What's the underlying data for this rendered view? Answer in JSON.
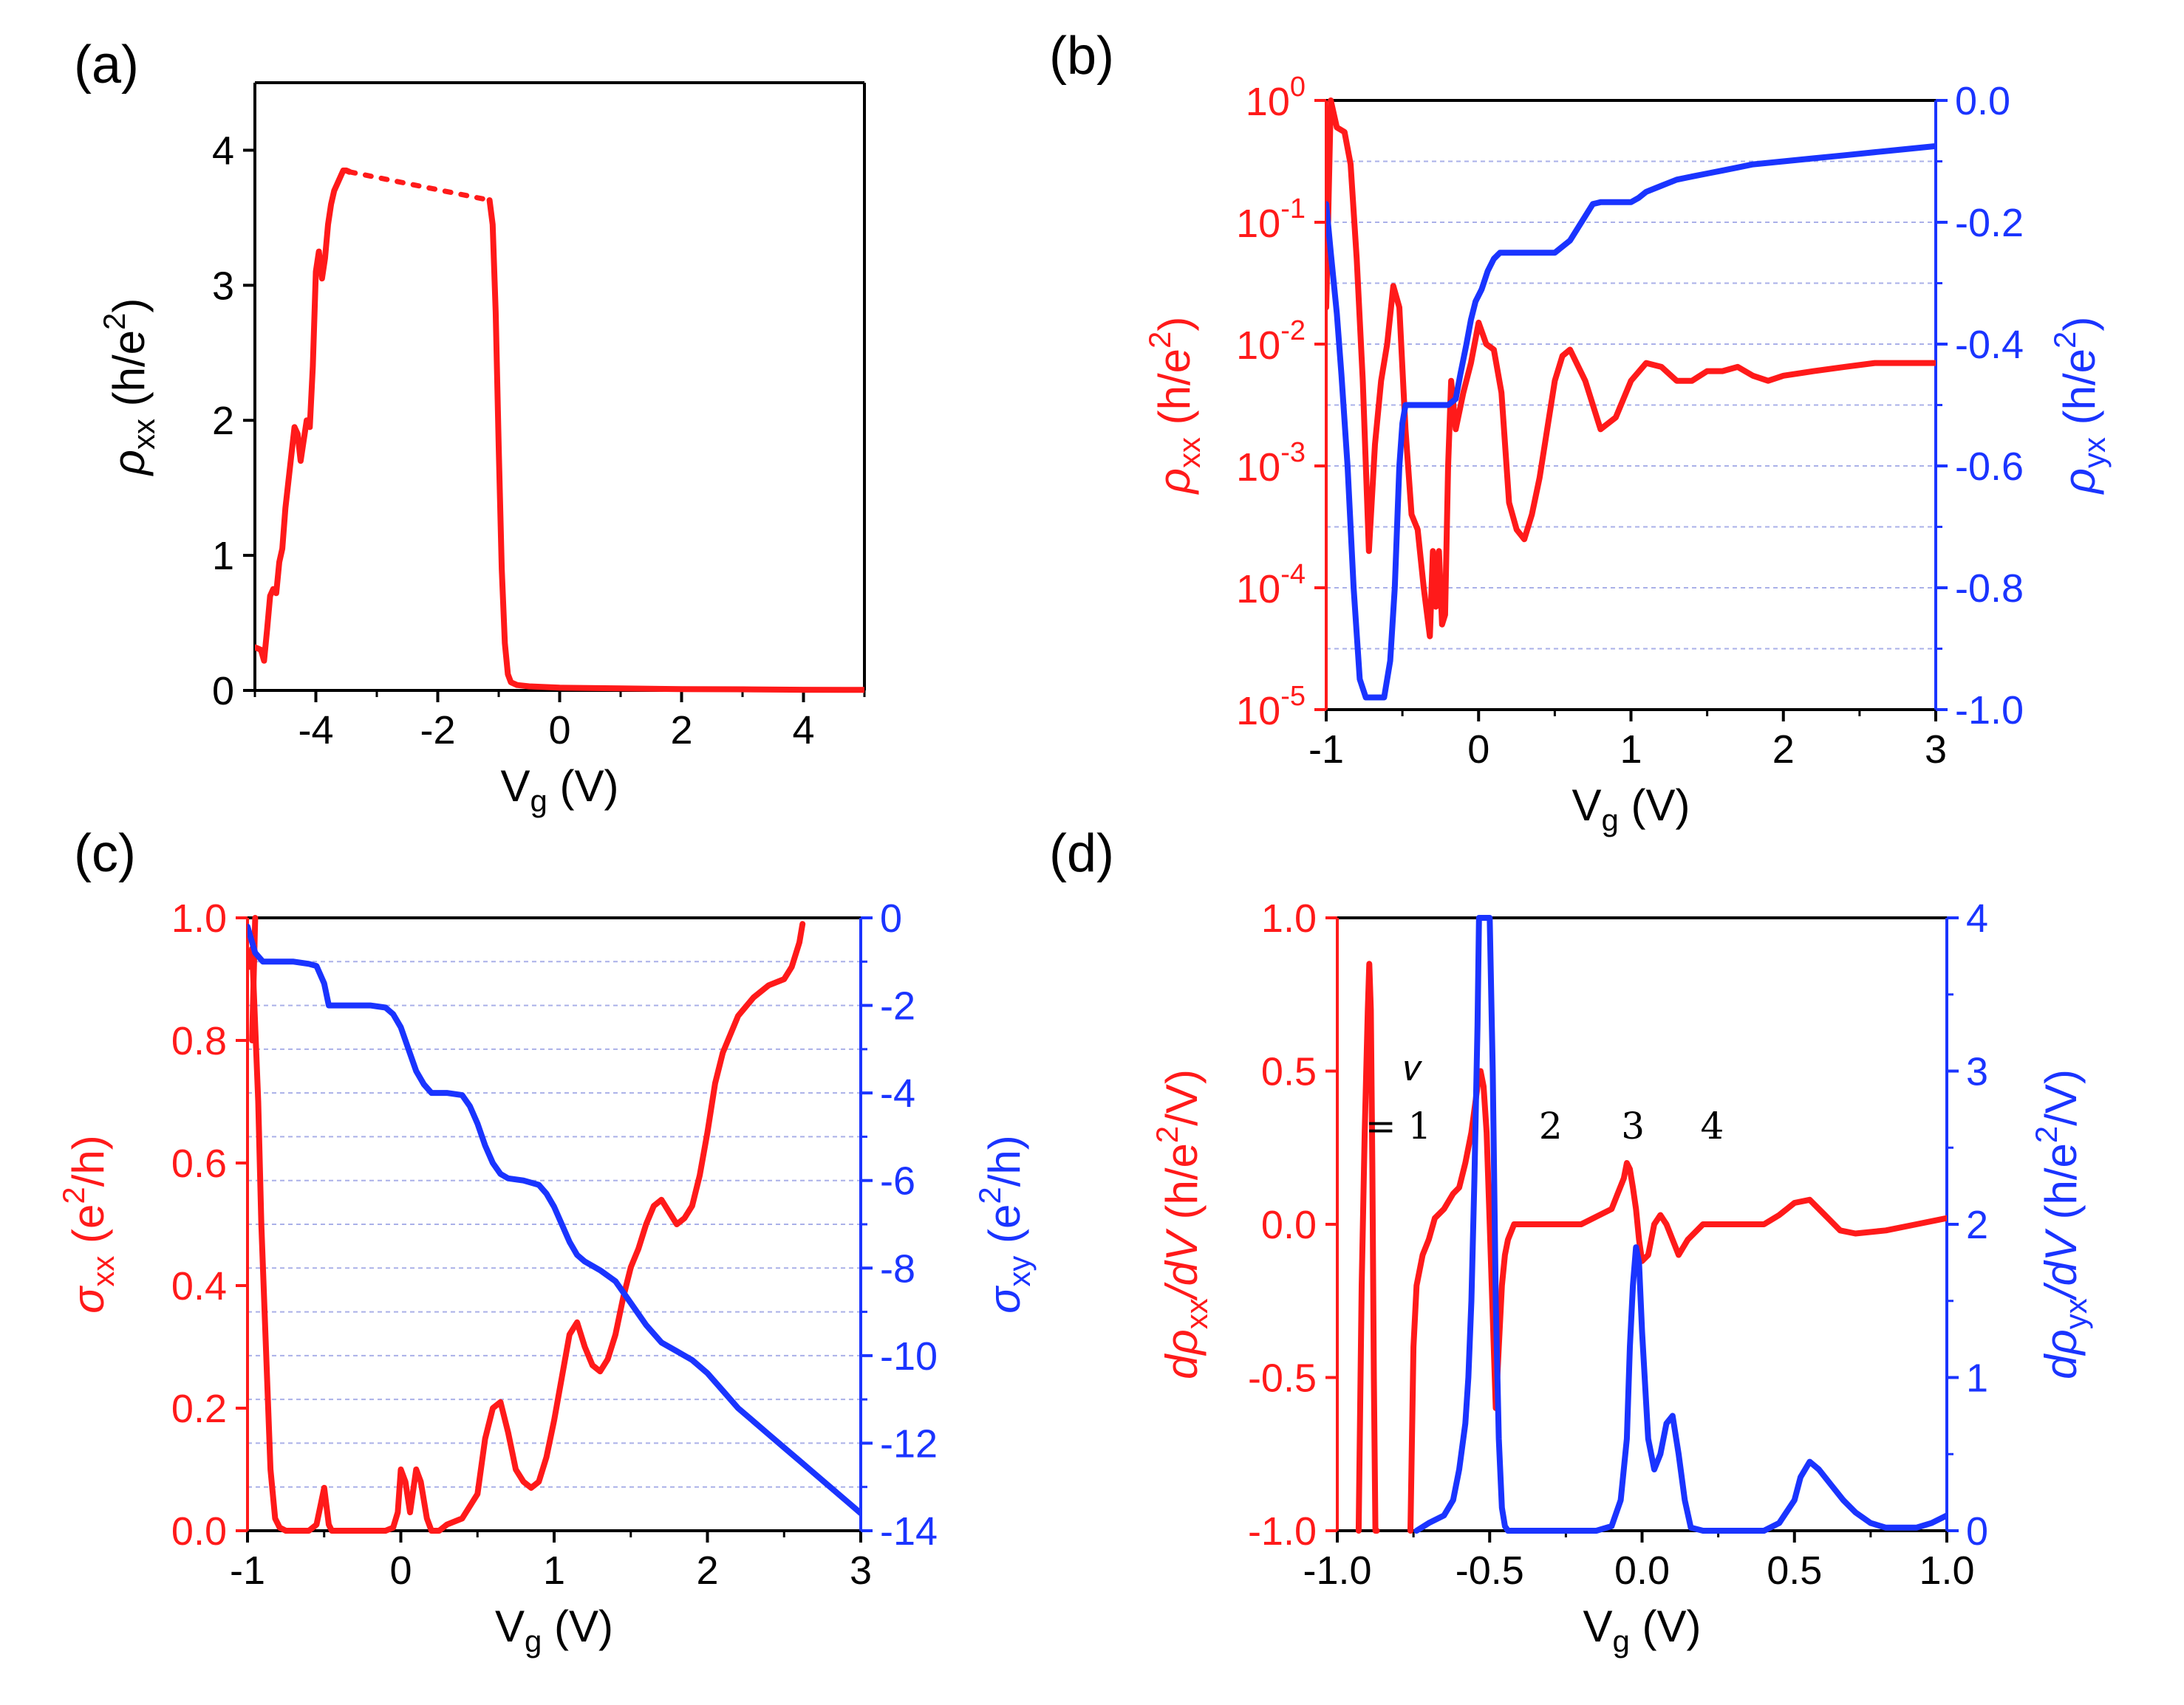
{
  "colors": {
    "red": "#ff1a1a",
    "blue": "#1a34ff",
    "grid": "#aab0e8"
  },
  "chart_data": [
    {
      "panel": "(a)",
      "type": "line",
      "xlabel": "Vg (V)",
      "ylabel": "ρxx (h/e2)",
      "xlim": [
        -5,
        5
      ],
      "ylim": [
        0,
        4.5
      ],
      "xticks": [
        -4,
        -2,
        0,
        2,
        4
      ],
      "yticks": [
        0,
        1,
        2,
        3,
        4
      ],
      "series": [
        {
          "color": "red",
          "axis": "left",
          "x": [
            -5.0,
            -4.9,
            -4.85,
            -4.8,
            -4.75,
            -4.7,
            -4.65,
            -4.6,
            -4.55,
            -4.5,
            -4.45,
            -4.4,
            -4.35,
            -4.3,
            -4.25,
            -4.2,
            -4.15,
            -4.1,
            -4.05,
            -4.0,
            -3.95,
            -3.9,
            -3.85,
            -3.8,
            -3.75,
            -3.7,
            -3.65,
            -3.6,
            -3.55,
            -3.5,
            -3.45
          ],
          "y": [
            0.32,
            0.3,
            0.22,
            0.45,
            0.7,
            0.75,
            0.72,
            0.95,
            1.05,
            1.35,
            1.55,
            1.75,
            1.95,
            1.9,
            1.7,
            1.85,
            2.0,
            1.95,
            2.4,
            3.1,
            3.25,
            3.05,
            3.2,
            3.45,
            3.6,
            3.7,
            3.75,
            3.8,
            3.85,
            3.85,
            3.84
          ]
        },
        {
          "color": "red",
          "axis": "left",
          "dashed": true,
          "x": [
            -3.45,
            -1.15
          ],
          "y": [
            3.84,
            3.63
          ]
        },
        {
          "color": "red",
          "axis": "left",
          "x": [
            -1.15,
            -1.1,
            -1.05,
            -1.0,
            -0.95,
            -0.9,
            -0.85,
            -0.8,
            -0.7,
            -0.5,
            0,
            1,
            2,
            3,
            4,
            5
          ],
          "y": [
            3.63,
            3.45,
            2.8,
            1.8,
            0.9,
            0.35,
            0.12,
            0.06,
            0.04,
            0.03,
            0.02,
            0.015,
            0.01,
            0.008,
            0.005,
            0.004
          ]
        }
      ]
    },
    {
      "panel": "(b)",
      "type": "line",
      "xlabel": "Vg (V)",
      "ylabel": "ρxx (h/e2)",
      "ylabel_right": "ρyx (h/e2)",
      "xlim": [
        -1,
        3
      ],
      "ylim": [
        1e-05,
        1
      ],
      "yscale": "log",
      "ylim_right": [
        -1.0,
        0.0
      ],
      "xticks": [
        -1,
        0,
        1,
        2,
        3
      ],
      "yticks_exponents": [
        "0",
        "-1",
        "-2",
        "-3",
        "-4",
        "-5"
      ],
      "yticks_right": [
        "0.0",
        "-0.2",
        "-0.4",
        "-0.6",
        "-0.8",
        "-1.0"
      ],
      "grid": "horizontal dashed at right-axis ticks",
      "series": [
        {
          "color": "red",
          "axis": "left",
          "x": [
            -1.0,
            -0.97,
            -0.93,
            -0.88,
            -0.84,
            -0.8,
            -0.76,
            -0.72,
            -0.68,
            -0.64,
            -0.6,
            -0.56,
            -0.52,
            -0.48,
            -0.44,
            -0.4,
            -0.36,
            -0.32,
            -0.3,
            -0.28,
            -0.26,
            -0.24,
            -0.22,
            -0.2,
            -0.18,
            -0.15,
            -0.1,
            -0.05,
            0,
            0.05,
            0.1,
            0.15,
            0.2,
            0.25,
            0.3,
            0.35,
            0.4,
            0.45,
            0.5,
            0.55,
            0.6,
            0.7,
            0.8,
            0.9,
            1.0,
            1.1,
            1.2,
            1.3,
            1.4,
            1.5,
            1.6,
            1.7,
            1.8,
            1.9,
            2.0,
            2.2,
            2.4,
            2.6,
            2.8,
            3.0
          ],
          "y": [
            0.02,
            1.0,
            0.6,
            0.55,
            0.3,
            0.05,
            0.005,
            0.0002,
            0.0015,
            0.005,
            0.01,
            0.03,
            0.02,
            0.002,
            0.0004,
            0.0003,
            0.0001,
            4e-05,
            0.0002,
            7e-05,
            0.0002,
            5e-05,
            6e-05,
            0.001,
            0.005,
            0.002,
            0.004,
            0.007,
            0.015,
            0.01,
            0.009,
            0.004,
            0.0005,
            0.0003,
            0.00025,
            0.0004,
            0.0008,
            0.002,
            0.005,
            0.008,
            0.009,
            0.005,
            0.002,
            0.0025,
            0.005,
            0.007,
            0.0065,
            0.005,
            0.005,
            0.006,
            0.006,
            0.0065,
            0.0055,
            0.005,
            0.0055,
            0.006,
            0.0065,
            0.007,
            0.007,
            0.007
          ]
        },
        {
          "color": "blue",
          "axis": "right",
          "x": [
            -1.0,
            -0.97,
            -0.93,
            -0.9,
            -0.86,
            -0.82,
            -0.78,
            -0.74,
            -0.7,
            -0.66,
            -0.62,
            -0.58,
            -0.55,
            -0.52,
            -0.5,
            -0.48,
            -0.46,
            -0.44,
            -0.4,
            -0.3,
            -0.2,
            -0.15,
            -0.12,
            -0.08,
            -0.05,
            -0.02,
            0.02,
            0.06,
            0.1,
            0.14,
            0.18,
            0.25,
            0.4,
            0.5,
            0.6,
            0.65,
            0.7,
            0.75,
            0.8,
            0.9,
            1.0,
            1.05,
            1.1,
            1.2,
            1.3,
            1.4,
            1.5,
            1.6,
            1.7,
            1.8,
            2.0,
            2.2,
            2.4,
            2.6,
            2.8,
            3.0
          ],
          "y": [
            -0.17,
            -0.25,
            -0.35,
            -0.45,
            -0.6,
            -0.8,
            -0.95,
            -0.98,
            -0.98,
            -0.98,
            -0.98,
            -0.92,
            -0.8,
            -0.6,
            -0.53,
            -0.5,
            -0.5,
            -0.5,
            -0.5,
            -0.5,
            -0.5,
            -0.49,
            -0.45,
            -0.4,
            -0.36,
            -0.33,
            -0.31,
            -0.28,
            -0.26,
            -0.25,
            -0.25,
            -0.25,
            -0.25,
            -0.25,
            -0.23,
            -0.21,
            -0.19,
            -0.17,
            -0.167,
            -0.167,
            -0.167,
            -0.16,
            -0.15,
            -0.14,
            -0.13,
            -0.125,
            -0.12,
            -0.115,
            -0.11,
            -0.105,
            -0.1,
            -0.095,
            -0.09,
            -0.085,
            -0.08,
            -0.075
          ]
        }
      ]
    },
    {
      "panel": "(c)",
      "type": "line",
      "xlabel": "Vg (V)",
      "ylabel": "σxx (e2/h)",
      "ylabel_right": "σxy (e2/h)",
      "xlim": [
        -1,
        3
      ],
      "ylim": [
        0,
        1.0
      ],
      "ylim_right": [
        -14,
        0
      ],
      "xticks": [
        -1,
        0,
        1,
        2,
        3
      ],
      "yticks": [
        "0.0",
        "0.2",
        "0.4",
        "0.6",
        "0.8",
        "1.0"
      ],
      "yticks_right": [
        "0",
        "-2",
        "-4",
        "-6",
        "-8",
        "-10",
        "-12",
        "-14"
      ],
      "grid": "horizontal dashed at right-axis ticks",
      "series": [
        {
          "color": "red",
          "axis": "left",
          "x": [
            -0.99,
            -0.97,
            -0.93,
            -0.91,
            -0.88,
            -0.85,
            -0.82,
            -0.79,
            -0.75,
            -0.7,
            -0.6,
            -0.55,
            -0.5,
            -0.47,
            -0.45,
            -0.4,
            -0.3,
            -0.2,
            -0.1,
            -0.05,
            -0.02,
            0,
            0.03,
            0.06,
            0.1,
            0.13,
            0.17,
            0.2,
            0.25,
            0.3,
            0.4,
            0.5,
            0.55,
            0.6,
            0.65,
            0.7,
            0.75,
            0.8,
            0.85,
            0.9,
            0.95,
            1.0,
            1.05,
            1.1,
            1.15,
            1.2,
            1.25,
            1.3,
            1.35,
            1.4,
            1.45,
            1.5,
            1.55,
            1.6,
            1.65,
            1.7,
            1.75,
            1.8,
            1.85,
            1.9,
            1.95,
            2.0,
            2.05,
            2.1,
            2.2,
            2.3,
            2.4,
            2.5,
            2.55,
            2.6,
            2.62
          ],
          "y": [
            0.92,
            0.95,
            0.7,
            0.5,
            0.3,
            0.1,
            0.02,
            0.005,
            0,
            0,
            0,
            0.01,
            0.07,
            0.01,
            0,
            0,
            0,
            0,
            0,
            0.005,
            0.03,
            0.1,
            0.08,
            0.03,
            0.1,
            0.08,
            0.02,
            0,
            0,
            0.01,
            0.02,
            0.06,
            0.15,
            0.2,
            0.21,
            0.16,
            0.1,
            0.08,
            0.07,
            0.08,
            0.12,
            0.18,
            0.25,
            0.32,
            0.34,
            0.3,
            0.27,
            0.26,
            0.28,
            0.32,
            0.38,
            0.43,
            0.46,
            0.5,
            0.53,
            0.54,
            0.52,
            0.5,
            0.51,
            0.53,
            0.58,
            0.65,
            0.73,
            0.78,
            0.84,
            0.87,
            0.89,
            0.9,
            0.92,
            0.96,
            0.99
          ]
        },
        {
          "color": "red",
          "axis": "left",
          "x": [
            -0.97,
            -0.95
          ],
          "y": [
            0.8,
            1.0
          ]
        },
        {
          "color": "blue",
          "axis": "right",
          "x": [
            -1.0,
            -0.95,
            -0.9,
            -0.85,
            -0.8,
            -0.7,
            -0.6,
            -0.55,
            -0.5,
            -0.47,
            -0.4,
            -0.3,
            -0.2,
            -0.1,
            -0.05,
            0,
            0.05,
            0.1,
            0.15,
            0.2,
            0.3,
            0.4,
            0.45,
            0.5,
            0.55,
            0.6,
            0.65,
            0.7,
            0.8,
            0.9,
            0.95,
            1.0,
            1.05,
            1.1,
            1.15,
            1.2,
            1.25,
            1.3,
            1.4,
            1.5,
            1.6,
            1.7,
            1.8,
            1.9,
            2.0,
            2.1,
            2.2,
            2.3,
            2.4,
            2.5,
            2.6,
            2.7,
            2.8,
            2.9,
            3.0
          ],
          "y": [
            -0.2,
            -0.8,
            -1.0,
            -1.0,
            -1.0,
            -1.0,
            -1.05,
            -1.1,
            -1.5,
            -2.0,
            -2.0,
            -2.0,
            -2.0,
            -2.05,
            -2.2,
            -2.5,
            -3.0,
            -3.5,
            -3.8,
            -4.0,
            -4.0,
            -4.05,
            -4.3,
            -4.7,
            -5.2,
            -5.6,
            -5.85,
            -5.95,
            -6.0,
            -6.1,
            -6.3,
            -6.6,
            -7.0,
            -7.4,
            -7.7,
            -7.85,
            -7.95,
            -8.05,
            -8.3,
            -8.8,
            -9.3,
            -9.7,
            -9.9,
            -10.1,
            -10.4,
            -10.8,
            -11.2,
            -11.5,
            -11.8,
            -12.1,
            -12.4,
            -12.7,
            -13.0,
            -13.3,
            -13.6
          ]
        }
      ]
    },
    {
      "panel": "(d)",
      "type": "line",
      "xlabel": "Vg (V)",
      "ylabel": "dρxx/dV (h/e2/V)",
      "ylabel_right": "dρyx/dV (h/e2/V)",
      "xlim": [
        -1.0,
        1.0
      ],
      "ylim": [
        -1.0,
        1.0
      ],
      "ylim_right": [
        0,
        4
      ],
      "xticks": [
        "-1.0",
        "-0.5",
        "0.0",
        "0.5",
        "1.0"
      ],
      "yticks": [
        "1.0",
        "0.5",
        "0.0",
        "-0.5",
        "-1.0"
      ],
      "yticks_right": [
        "0",
        "1",
        "2",
        "3",
        "4"
      ],
      "annotations": [
        {
          "text": "𝜈",
          "x": -0.75,
          "y": 0.47
        },
        {
          "text": "= 1",
          "x": -0.8,
          "y": 0.28
        },
        {
          "text": "2",
          "x": -0.3,
          "y": 0.28
        },
        {
          "text": "3",
          "x": -0.03,
          "y": 0.28
        },
        {
          "text": "4",
          "x": 0.23,
          "y": 0.28
        }
      ],
      "series": [
        {
          "color": "red",
          "axis": "left",
          "x": [
            -0.93,
            -0.92,
            -0.91,
            -0.9,
            -0.895,
            -0.89,
            -0.885,
            -0.88,
            -0.875,
            -0.87
          ],
          "y": [
            -1.0,
            -0.2,
            0.3,
            0.7,
            0.85,
            0.7,
            0.2,
            -0.5,
            -1.0,
            -1.0
          ]
        },
        {
          "color": "red",
          "axis": "left",
          "x": [
            -0.76,
            -0.75,
            -0.74,
            -0.72,
            -0.7,
            -0.68,
            -0.65,
            -0.62,
            -0.6,
            -0.58,
            -0.56,
            -0.54,
            -0.53,
            -0.52,
            -0.51,
            -0.5,
            -0.49,
            -0.48,
            -0.47,
            -0.46,
            -0.45,
            -0.44,
            -0.42,
            -0.4,
            -0.35,
            -0.3,
            -0.2,
            -0.1,
            -0.08,
            -0.06,
            -0.05,
            -0.04,
            -0.03,
            -0.02,
            -0.01,
            0,
            0.02,
            0.04,
            0.06,
            0.08,
            0.1,
            0.12,
            0.15,
            0.2,
            0.3,
            0.4,
            0.45,
            0.5,
            0.55,
            0.6,
            0.65,
            0.7,
            0.8,
            0.9,
            1.0
          ],
          "y": [
            -1.0,
            -0.4,
            -0.2,
            -0.1,
            -0.05,
            0.02,
            0.05,
            0.1,
            0.12,
            0.2,
            0.3,
            0.45,
            0.5,
            0.45,
            0.3,
            0.0,
            -0.3,
            -0.6,
            -0.4,
            -0.2,
            -0.1,
            -0.05,
            0.0,
            0.0,
            0.0,
            0.0,
            0.0,
            0.05,
            0.1,
            0.15,
            0.2,
            0.18,
            0.12,
            0.05,
            -0.05,
            -0.12,
            -0.1,
            0.0,
            0.03,
            0.0,
            -0.05,
            -0.1,
            -0.05,
            0.0,
            0.0,
            0.0,
            0.03,
            0.07,
            0.08,
            0.03,
            -0.02,
            -0.03,
            -0.02,
            0.0,
            0.02
          ]
        },
        {
          "color": "blue",
          "axis": "right",
          "x": [
            -0.74,
            -0.7,
            -0.65,
            -0.62,
            -0.6,
            -0.58,
            -0.57,
            -0.56,
            -0.55,
            -0.54,
            -0.535,
            -0.53,
            -0.525,
            -0.52,
            -0.51,
            -0.5,
            -0.49,
            -0.48,
            -0.47,
            -0.46,
            -0.45,
            -0.44,
            -0.4,
            -0.3,
            -0.2,
            -0.15,
            -0.1,
            -0.07,
            -0.05,
            -0.04,
            -0.03,
            -0.02,
            -0.01,
            0,
            0.02,
            0.04,
            0.06,
            0.08,
            0.1,
            0.12,
            0.14,
            0.16,
            0.2,
            0.3,
            0.4,
            0.45,
            0.5,
            0.52,
            0.55,
            0.58,
            0.62,
            0.66,
            0.7,
            0.75,
            0.8,
            0.9,
            0.95,
            1.0
          ],
          "y": [
            0.0,
            0.05,
            0.1,
            0.2,
            0.4,
            0.7,
            1.0,
            1.5,
            2.3,
            3.3,
            4.0,
            4.0,
            4.0,
            4.0,
            4.0,
            4.0,
            3.0,
            1.5,
            0.6,
            0.15,
            0.03,
            0.0,
            0.0,
            0.0,
            0.0,
            0.0,
            0.03,
            0.2,
            0.6,
            1.2,
            1.6,
            1.85,
            1.75,
            1.3,
            0.6,
            0.4,
            0.5,
            0.7,
            0.75,
            0.5,
            0.2,
            0.02,
            0.0,
            0.0,
            0.0,
            0.05,
            0.2,
            0.35,
            0.45,
            0.4,
            0.3,
            0.2,
            0.12,
            0.05,
            0.02,
            0.02,
            0.05,
            0.1
          ]
        }
      ]
    }
  ]
}
